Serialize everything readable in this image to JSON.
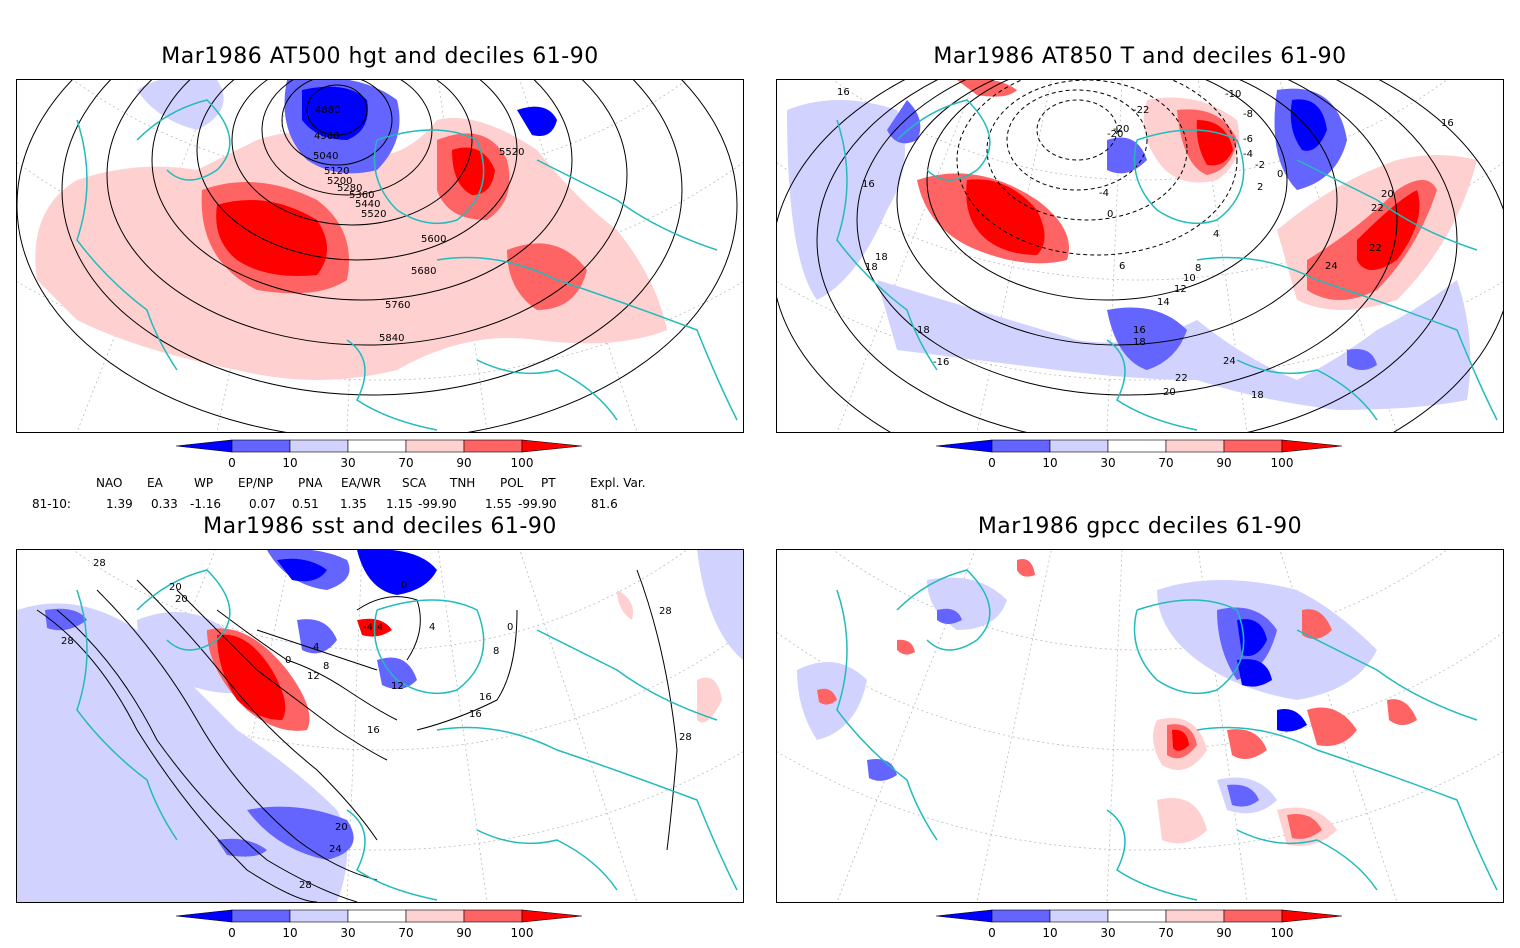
{
  "panels": [
    {
      "title": "Mar1986 AT500 hgt and deciles 61-90",
      "contour_labels": [
        "4880",
        "4960",
        "5040",
        "5120",
        "5200",
        "5280",
        "5360",
        "5440",
        "5520",
        "5520",
        "5600",
        "5680",
        "5760",
        "5840"
      ]
    },
    {
      "title": "Mar1986 AT850 T and deciles 61-90",
      "contour_labels": [
        "16",
        "16",
        "18",
        "18",
        "-10",
        "-8",
        "-6",
        "-4",
        "-2",
        "0",
        "2",
        "4",
        "6",
        "8",
        "10",
        "12",
        "14",
        "16",
        "18",
        "20",
        "22",
        "24",
        "-20",
        "-4",
        "0",
        "20",
        "22",
        "22",
        "24",
        "18",
        "16",
        "18",
        "-16",
        "-22",
        "-20"
      ]
    },
    {
      "title": "Mar1986 sst and deciles 61-90",
      "contour_labels": [
        "28",
        "20",
        "20",
        "28",
        "0",
        "4",
        "8",
        "12",
        "16",
        "20",
        "24",
        "28",
        "28",
        "28",
        "16",
        "16",
        "0",
        "8",
        "4",
        "12",
        "-4",
        "4",
        "0"
      ]
    },
    {
      "title": "Mar1986 gpcc deciles 61-90",
      "contour_labels": []
    }
  ],
  "colorbar": {
    "ticks": [
      "0",
      "10",
      "30",
      "70",
      "90",
      "100"
    ],
    "colors": [
      "#0000ff",
      "#6464ff",
      "#d2d2ff",
      "#ffffff",
      "#ffd2d2",
      "#ff6464",
      "#ff0000"
    ]
  },
  "indices": {
    "headers": [
      "NAO",
      "EA",
      "WP",
      "EP/NP",
      "PNA",
      "EA/WR",
      "SCA",
      "TNH",
      "POL",
      "PT",
      "Expl. Var."
    ],
    "row_label": "81-10:",
    "values": [
      "1.39",
      "0.33",
      "-1.16",
      "0.07",
      "0.51",
      "1.35",
      "1.15",
      "-99.90",
      "1.55",
      "-99.90",
      "81.6"
    ]
  },
  "colors": {
    "coast": "#22bbbb",
    "red": "#ff0000",
    "lightred": "#ffd0d0",
    "blue": "#0000ff",
    "lightblue": "#d2d2ff"
  }
}
